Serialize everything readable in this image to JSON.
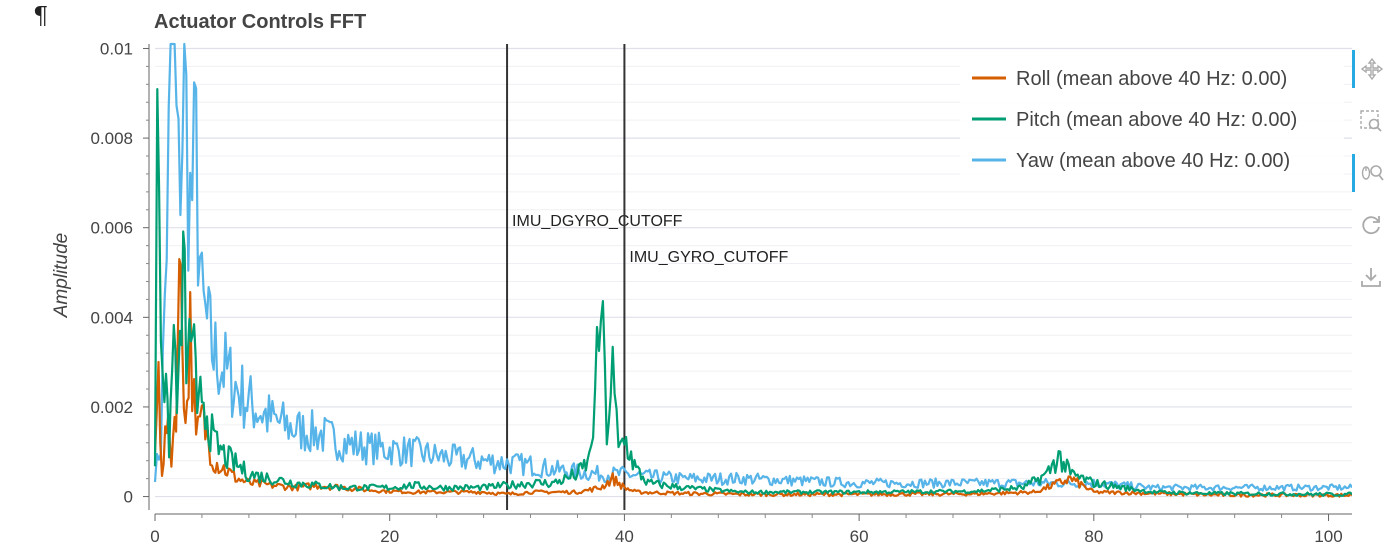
{
  "page": {
    "pilcrow": "¶"
  },
  "chart_data": {
    "type": "line",
    "title": "Actuator Controls FFT",
    "xlabel": "",
    "ylabel": "Amplitude",
    "xlim": [
      0,
      102
    ],
    "ylim": [
      -0.0003,
      0.0101
    ],
    "xticks": [
      0,
      20,
      40,
      60,
      80,
      100
    ],
    "yticks": [
      0,
      0.002,
      0.004,
      0.006,
      0.008,
      0.01
    ],
    "ytick_labels": [
      "0",
      "0.002",
      "0.004",
      "0.006",
      "0.008",
      "0.01"
    ],
    "grid": true,
    "legend_position": "top-right",
    "vlines": [
      {
        "x": 30,
        "label": "IMU_DGYRO_CUTOFF"
      },
      {
        "x": 40,
        "label": "IMU_GYRO_CUTOFF"
      }
    ],
    "series": [
      {
        "name": "Roll (mean above 40 Hz: 0.00)",
        "color": "#d55e00",
        "x": [
          0,
          0.3,
          0.6,
          1,
          1.4,
          1.8,
          2.2,
          2.6,
          3,
          3.5,
          4,
          5,
          6,
          7,
          8,
          10,
          12,
          14,
          16,
          18,
          20,
          22,
          24,
          26,
          28,
          30,
          32,
          34,
          36,
          38,
          39,
          40,
          41,
          45,
          50,
          60,
          70,
          75,
          78,
          80,
          90,
          100,
          102
        ],
        "y": [
          0.001,
          0.0027,
          0.0006,
          0.0016,
          0.0009,
          0.0022,
          0.0054,
          0.0015,
          0.0037,
          0.0012,
          0.0018,
          0.0008,
          0.0006,
          0.0004,
          0.0003,
          0.00025,
          0.0002,
          0.00025,
          0.0002,
          0.00015,
          0.00012,
          0.0001,
          0.0001,
          0.0001,
          0.0001,
          5e-05,
          0.0001,
          0.0001,
          0.0001,
          0.0002,
          0.0004,
          0.0002,
          0.0001,
          7e-05,
          5e-05,
          5e-05,
          6e-05,
          0.0001,
          0.0004,
          0.0001,
          4e-05,
          3e-05,
          3e-05
        ]
      },
      {
        "name": "Pitch (mean above 40 Hz: 0.00)",
        "color": "#009e73",
        "x": [
          0,
          0.2,
          0.5,
          0.8,
          1.2,
          1.6,
          2,
          2.4,
          2.8,
          3.2,
          3.6,
          4,
          5,
          6,
          7,
          8,
          10,
          12,
          14,
          16,
          18,
          20,
          22,
          24,
          26,
          28,
          30,
          32,
          34,
          36,
          37,
          37.5,
          38,
          38.5,
          39,
          39.5,
          40,
          41,
          42,
          45,
          50,
          60,
          70,
          74,
          76,
          77,
          78,
          80,
          85,
          90,
          100,
          102
        ],
        "y": [
          0.0008,
          0.0102,
          0.0045,
          0.0025,
          0.0012,
          0.0035,
          0.0022,
          0.0049,
          0.0028,
          0.0041,
          0.0015,
          0.0024,
          0.0012,
          0.0009,
          0.0007,
          0.0005,
          0.0004,
          0.0003,
          0.00025,
          0.0002,
          0.0002,
          0.0002,
          0.00025,
          0.0002,
          0.0002,
          0.0002,
          0.00025,
          0.0003,
          0.0003,
          0.0005,
          0.0008,
          0.0021,
          0.0043,
          0.0015,
          0.0027,
          0.001,
          0.0013,
          0.0006,
          0.0003,
          0.0002,
          0.0001,
          0.0001,
          0.00012,
          0.0002,
          0.0005,
          0.0009,
          0.0005,
          0.0003,
          0.0001,
          7e-05,
          5e-05,
          5e-05
        ]
      },
      {
        "name": "Yaw (mean above 40 Hz: 0.00)",
        "color": "#56b4e9",
        "x": [
          0,
          0.5,
          1,
          1.5,
          2,
          2.5,
          3,
          3.5,
          4,
          5,
          6,
          7,
          8,
          9,
          10,
          12,
          14,
          16,
          18,
          20,
          22,
          24,
          26,
          28,
          30,
          32,
          34,
          36,
          38,
          40,
          42,
          45,
          50,
          55,
          60,
          65,
          70,
          75,
          80,
          85,
          90,
          95,
          100,
          102
        ],
        "y": [
          0.0005,
          0.0012,
          0.006,
          0.0101,
          0.0069,
          0.0092,
          0.0064,
          0.0075,
          0.0042,
          0.0032,
          0.0028,
          0.0024,
          0.0021,
          0.0019,
          0.0017,
          0.0015,
          0.0014,
          0.0012,
          0.0011,
          0.00105,
          0.001,
          0.0009,
          0.00085,
          0.0008,
          0.00075,
          0.0007,
          0.0006,
          0.00055,
          0.0005,
          0.0005,
          0.00045,
          0.0004,
          0.0004,
          0.00035,
          0.0003,
          0.0003,
          0.0003,
          0.0003,
          0.0003,
          0.0002,
          0.0002,
          0.0002,
          0.0002,
          0.0002
        ]
      }
    ]
  },
  "toolbar": {
    "tools": [
      {
        "icon": "pan-icon",
        "active": true
      },
      {
        "icon": "box-zoom-icon",
        "active": false
      },
      {
        "icon": "wheel-zoom-icon",
        "active": true
      },
      {
        "icon": "reset-icon",
        "active": false
      },
      {
        "icon": "save-icon",
        "active": false
      }
    ]
  }
}
